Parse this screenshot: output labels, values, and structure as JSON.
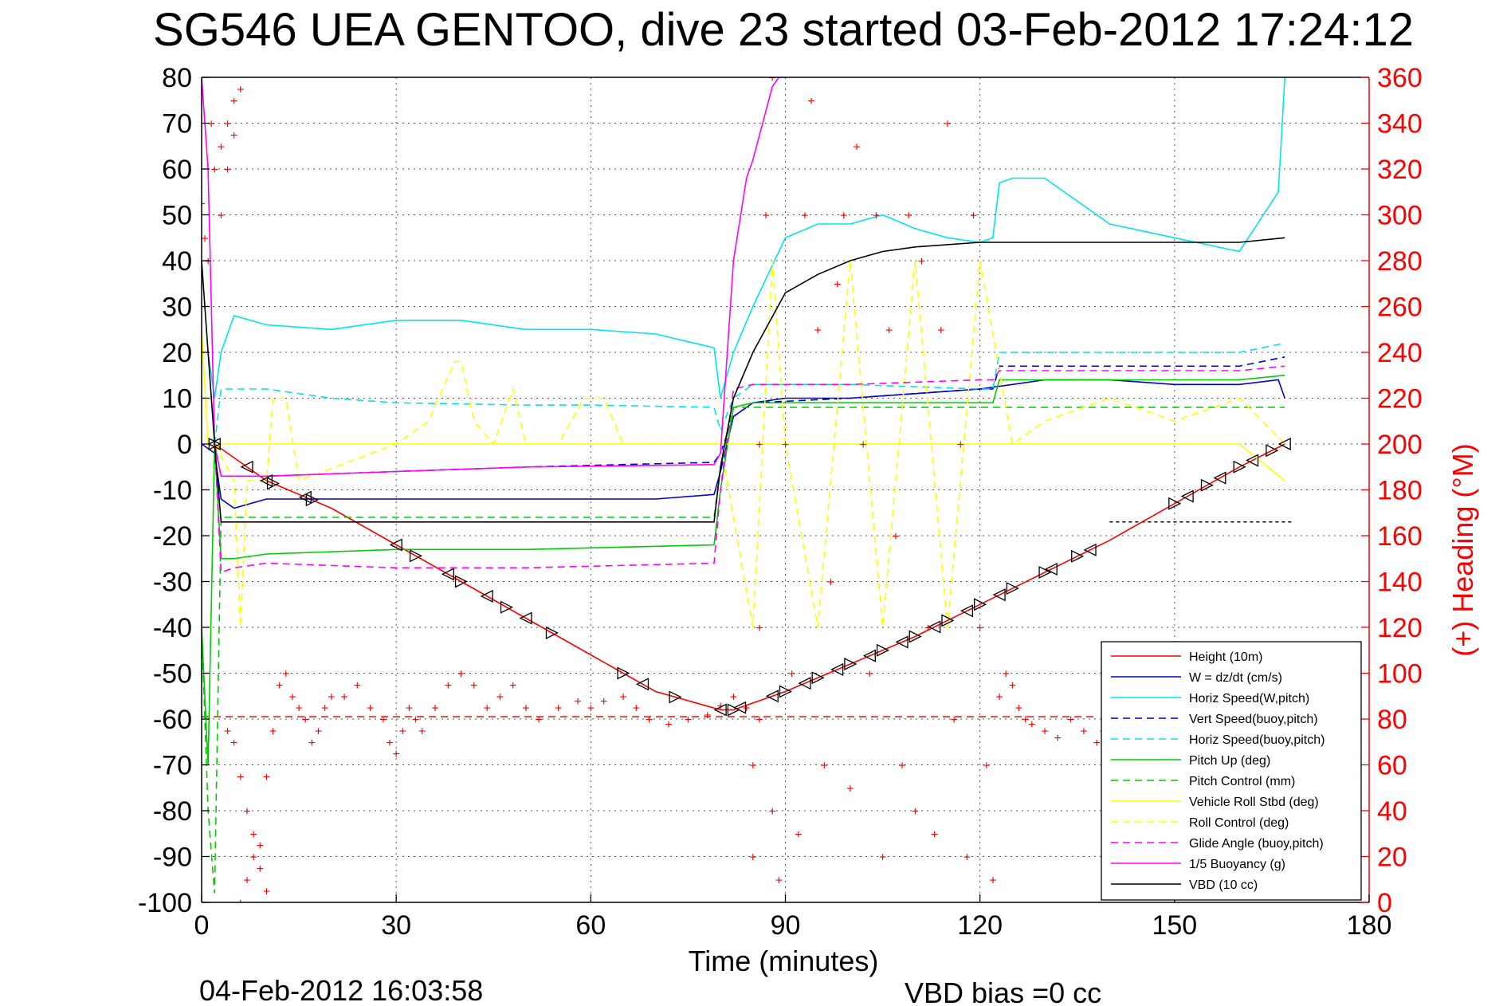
{
  "chart_data": {
    "type": "line",
    "title": "SG546 UEA GENTOO, dive 23 started 03-Feb-2012 17:24:12",
    "xlabel": "Time (minutes)",
    "ylabel": "",
    "y2label": "(+) Heading (°M)",
    "xlim": [
      0,
      180
    ],
    "ylim": [
      -100,
      80
    ],
    "y2lim": [
      0,
      360
    ],
    "x_ticks": [
      "0",
      "30",
      "60",
      "90",
      "120",
      "150",
      "180"
    ],
    "y_ticks": [
      "80",
      "70",
      "60",
      "50",
      "40",
      "30",
      "20",
      "10",
      "0",
      "-10",
      "-20",
      "-30",
      "-40",
      "-50",
      "-60",
      "-70",
      "-80",
      "-90",
      "-100"
    ],
    "y2_ticks": [
      "360",
      "340",
      "320",
      "300",
      "280",
      "260",
      "240",
      "220",
      "200",
      "180",
      "160",
      "140",
      "120",
      "100",
      "80",
      "60",
      "40",
      "20",
      "0"
    ],
    "grid": true,
    "legend_position": "bottom-right",
    "footer_left": "04-Feb-2012 16:03:58",
    "footer_right": "VBD bias =0 cc",
    "colors": {
      "height": "#ff0000",
      "w": "#0000cc",
      "horiz": "#00e5e5",
      "pitch": "#00cc00",
      "roll": "#ffff00",
      "glide": "#ff00ff",
      "vbd": "#000000",
      "right_axis": "#ff0000"
    },
    "series": [
      {
        "key": "height",
        "name": "Height (10m)",
        "color": "#ff0000",
        "dash": "",
        "x": [
          2,
          10,
          20,
          30,
          40,
          50,
          60,
          70,
          80,
          82,
          90,
          100,
          110,
          120,
          130,
          140,
          150,
          160,
          167
        ],
        "y": [
          0,
          -8,
          -14,
          -22,
          -30,
          -38,
          -46,
          -54,
          -58,
          -58,
          -54,
          -48,
          -42,
          -35,
          -28,
          -21,
          -13,
          -5,
          0
        ]
      },
      {
        "key": "w",
        "name": "W = dz/dt (cm/s)",
        "color": "#0000cc",
        "dash": "",
        "x": [
          0,
          2,
          3,
          5,
          10,
          20,
          30,
          40,
          50,
          60,
          70,
          79,
          80,
          82,
          85,
          90,
          100,
          110,
          120,
          125,
          130,
          140,
          150,
          160,
          166,
          167
        ],
        "y": [
          0,
          -2,
          -12,
          -14,
          -12,
          -12,
          -12,
          -12,
          -12,
          -12,
          -12,
          -11,
          -6,
          6,
          9,
          10,
          10,
          11,
          12,
          13,
          14,
          14,
          13,
          13,
          14,
          10
        ]
      },
      {
        "key": "horiz_w",
        "name": "Horiz Speed(W,pitch)",
        "color": "#00e5e5",
        "dash": "",
        "x": [
          1,
          2,
          3,
          5,
          10,
          20,
          30,
          40,
          50,
          60,
          70,
          79,
          80,
          82,
          85,
          90,
          95,
          100,
          105,
          110,
          115,
          120,
          122,
          123,
          125,
          130,
          140,
          150,
          160,
          166,
          167
        ],
        "y": [
          20,
          10,
          20,
          28,
          26,
          25,
          27,
          27,
          25,
          25,
          24,
          21,
          10,
          20,
          30,
          45,
          48,
          48,
          50,
          47,
          45,
          44,
          45,
          57,
          58,
          58,
          48,
          45,
          42,
          55,
          80
        ]
      },
      {
        "key": "vert_buoy",
        "name": "Vert Speed(buoy,pitch)",
        "color": "#0000cc",
        "dash": "9,6",
        "x": [
          2,
          3,
          10,
          30,
          50,
          79,
          80,
          82,
          85,
          100,
          120,
          122,
          123,
          140,
          160,
          167
        ],
        "y": [
          0,
          -7,
          -7,
          -6,
          -5,
          -4,
          -2,
          6,
          9,
          10,
          12,
          12,
          17,
          17,
          17,
          19
        ]
      },
      {
        "key": "horiz_buoy",
        "name": "Horiz Speed(buoy,pitch)",
        "color": "#00e5e5",
        "dash": "9,6",
        "x": [
          2,
          3,
          10,
          20,
          30,
          50,
          60,
          79,
          80,
          82,
          85,
          100,
          120,
          122,
          123,
          140,
          160,
          167
        ],
        "y": [
          0,
          12,
          12,
          10,
          9,
          8.5,
          8.5,
          8,
          3,
          10,
          13,
          13,
          12,
          12,
          20,
          20,
          20,
          22
        ]
      },
      {
        "key": "pitch_up",
        "name": "Pitch Up (deg)",
        "color": "#00cc00",
        "dash": "",
        "x": [
          0,
          1,
          2,
          3,
          5,
          10,
          30,
          50,
          79,
          80,
          82,
          85,
          100,
          120,
          122,
          123,
          140,
          160,
          167
        ],
        "y": [
          -40,
          -70,
          0,
          -25,
          -25,
          -24,
          -23,
          -23,
          -22,
          -10,
          8,
          9,
          9,
          9,
          9,
          14,
          14,
          14,
          15
        ]
      },
      {
        "key": "pitch_ctrl",
        "name": "Pitch Control (mm)",
        "color": "#00cc00",
        "dash": "9,6",
        "x": [
          0,
          1,
          2,
          3,
          10,
          30,
          50,
          79,
          80,
          82,
          85,
          100,
          120,
          167
        ],
        "y": [
          -40,
          -80,
          -98,
          -16,
          -16,
          -16,
          -16,
          -16,
          -5,
          8,
          8,
          8,
          8,
          8
        ]
      },
      {
        "key": "roll",
        "name": "Vehicle Roll Stbd (deg)",
        "color": "#ffff00",
        "dash": "",
        "x": [
          0,
          1,
          2,
          3,
          10,
          30,
          50,
          79,
          80,
          85,
          90,
          100,
          110,
          120,
          130,
          140,
          150,
          160,
          167
        ],
        "y": [
          25,
          0,
          -1,
          0,
          0,
          0,
          0,
          0,
          0,
          0,
          0,
          0,
          0,
          0,
          0,
          0,
          0,
          0,
          -8
        ]
      },
      {
        "key": "roll_ctrl",
        "name": "Roll Control (deg)",
        "color": "#ffff00",
        "dash": "9,6",
        "x": [
          2,
          5,
          6,
          7,
          10,
          11,
          13,
          15,
          30,
          35,
          39,
          40,
          42,
          45,
          48,
          50,
          55,
          59,
          62,
          65,
          79,
          80,
          85,
          88,
          90,
          95,
          100,
          105,
          110,
          115,
          120,
          125,
          130,
          140,
          150,
          160,
          167
        ],
        "y": [
          0,
          -8,
          -40,
          -8,
          -8,
          10,
          10,
          -8,
          0,
          5,
          18,
          18,
          5,
          0,
          12,
          0,
          0,
          10,
          10,
          0,
          0,
          0,
          -40,
          40,
          0,
          -40,
          40,
          -40,
          40,
          -40,
          40,
          0,
          5,
          10,
          5,
          10,
          0
        ]
      },
      {
        "key": "glide",
        "name": "Glide Angle (buoy,pitch)",
        "color": "#ff00ff",
        "dash": "9,6",
        "x": [
          2,
          3,
          5,
          10,
          30,
          50,
          79,
          80,
          82,
          85,
          100,
          120,
          122,
          123,
          140,
          160,
          167
        ],
        "y": [
          0,
          -28,
          -27,
          -26,
          -27,
          -27,
          -26,
          -10,
          12,
          13,
          13,
          14,
          14,
          16,
          16,
          16,
          17
        ]
      },
      {
        "key": "buoyancy",
        "name": "1/5 Buoyancy (g)",
        "color": "#ff00ff",
        "dash": "",
        "x": [
          0,
          1,
          2,
          3,
          10,
          30,
          50,
          79,
          80,
          82,
          84,
          85,
          88,
          89,
          90
        ],
        "y": [
          80,
          60,
          0,
          -7,
          -7,
          -6,
          -5,
          -4.5,
          -2,
          40,
          58,
          62,
          78,
          80,
          80
        ]
      },
      {
        "key": "vbd",
        "name": "VBD (10 cc)",
        "color": "#000000",
        "dash": "",
        "x": [
          0,
          1,
          2,
          3,
          10,
          30,
          50,
          79,
          80,
          82,
          85,
          90,
          95,
          100,
          105,
          110,
          120,
          140,
          160,
          167
        ],
        "y": [
          40,
          20,
          0,
          -17,
          -17,
          -17,
          -17,
          -17,
          -5,
          10,
          20,
          33,
          37,
          40,
          42,
          43,
          44,
          44,
          44,
          45
        ]
      }
    ],
    "heading": {
      "name": "(+) Heading (°M)",
      "axis": "right",
      "marker": "+",
      "color": "#ff0000",
      "points": [
        [
          0,
          305
        ],
        [
          0.5,
          290
        ],
        [
          1,
          280
        ],
        [
          1.5,
          340
        ],
        [
          2,
          320
        ],
        [
          3,
          330
        ],
        [
          4,
          340
        ],
        [
          5,
          350
        ],
        [
          6,
          355
        ],
        [
          5,
          335
        ],
        [
          4,
          320
        ],
        [
          3,
          300
        ],
        [
          4,
          75
        ],
        [
          5,
          70
        ],
        [
          6,
          55
        ],
        [
          7,
          40
        ],
        [
          8,
          30
        ],
        [
          9,
          15
        ],
        [
          10,
          5
        ],
        [
          6,
          0
        ],
        [
          7,
          10
        ],
        [
          8,
          20
        ],
        [
          9,
          25
        ],
        [
          10,
          55
        ],
        [
          11,
          75
        ],
        [
          12,
          95
        ],
        [
          13,
          100
        ],
        [
          14,
          90
        ],
        [
          15,
          85
        ],
        [
          16,
          80
        ],
        [
          17,
          70
        ],
        [
          18,
          75
        ],
        [
          19,
          85
        ],
        [
          20,
          90
        ],
        [
          22,
          90
        ],
        [
          24,
          95
        ],
        [
          26,
          85
        ],
        [
          28,
          80
        ],
        [
          29,
          70
        ],
        [
          30,
          65
        ],
        [
          31,
          75
        ],
        [
          32,
          85
        ],
        [
          33,
          80
        ],
        [
          34,
          75
        ],
        [
          36,
          85
        ],
        [
          38,
          95
        ],
        [
          40,
          100
        ],
        [
          42,
          95
        ],
        [
          44,
          85
        ],
        [
          46,
          90
        ],
        [
          48,
          95
        ],
        [
          50,
          85
        ],
        [
          52,
          80
        ],
        [
          55,
          85
        ],
        [
          58,
          88
        ],
        [
          60,
          85
        ],
        [
          62,
          88
        ],
        [
          65,
          90
        ],
        [
          67,
          85
        ],
        [
          69,
          80
        ],
        [
          72,
          78
        ],
        [
          75,
          80
        ],
        [
          78,
          82
        ],
        [
          80,
          86
        ],
        [
          82,
          90
        ],
        [
          84,
          85
        ],
        [
          86,
          80
        ],
        [
          85,
          20
        ],
        [
          85,
          60
        ],
        [
          86,
          120
        ],
        [
          86,
          200
        ],
        [
          87,
          300
        ],
        [
          88,
          360
        ],
        [
          88,
          40
        ],
        [
          89,
          10
        ],
        [
          90,
          200
        ],
        [
          91,
          100
        ],
        [
          92,
          30
        ],
        [
          93,
          300
        ],
        [
          94,
          350
        ],
        [
          95,
          250
        ],
        [
          96,
          60
        ],
        [
          97,
          140
        ],
        [
          98,
          270
        ],
        [
          99,
          300
        ],
        [
          100,
          50
        ],
        [
          101,
          330
        ],
        [
          102,
          200
        ],
        [
          103,
          100
        ],
        [
          104,
          300
        ],
        [
          105,
          20
        ],
        [
          106,
          250
        ],
        [
          107,
          160
        ],
        [
          108,
          60
        ],
        [
          109,
          300
        ],
        [
          110,
          40
        ],
        [
          111,
          280
        ],
        [
          112,
          120
        ],
        [
          113,
          30
        ],
        [
          114,
          250
        ],
        [
          115,
          340
        ],
        [
          116,
          80
        ],
        [
          117,
          200
        ],
        [
          118,
          20
        ],
        [
          119,
          300
        ],
        [
          120,
          120
        ],
        [
          121,
          60
        ],
        [
          122,
          10
        ],
        [
          123,
          90
        ],
        [
          124,
          100
        ],
        [
          125,
          95
        ],
        [
          126,
          85
        ],
        [
          127,
          80
        ],
        [
          128,
          78
        ],
        [
          130,
          75
        ],
        [
          132,
          72
        ],
        [
          134,
          80
        ],
        [
          136,
          75
        ],
        [
          138,
          70
        ],
        [
          139,
          75
        ]
      ]
    },
    "depth_markers": {
      "right_triangles_x": [
        2,
        11,
        17,
        33,
        40,
        47,
        54,
        65,
        73,
        82,
        90,
        95,
        100,
        105,
        110,
        115,
        120,
        125,
        130,
        135,
        150,
        155,
        160,
        165
      ],
      "left_triangles_x": [
        2,
        7,
        10,
        16,
        30,
        38,
        44,
        50,
        68,
        80,
        83,
        88,
        93,
        98,
        103,
        108,
        113,
        118,
        123,
        131,
        137,
        152,
        157,
        162,
        167
      ]
    },
    "reference_lines": [
      {
        "axis": "left",
        "y": -59.5,
        "color": "#ff0000",
        "dash": "9,6",
        "x_from": 0,
        "x_to": 138
      },
      {
        "axis": "left",
        "y": -17,
        "color": "#000000",
        "dash": "4,4",
        "x_from": 140,
        "x_to": 168
      }
    ]
  }
}
